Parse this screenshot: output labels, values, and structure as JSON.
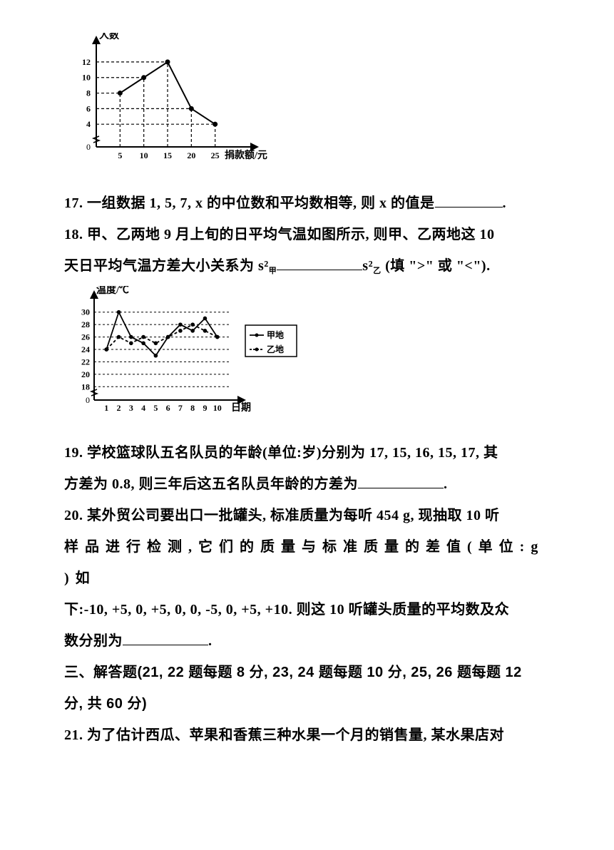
{
  "chart1": {
    "type": "line",
    "y_label": "人数",
    "x_label": "捐款额/元",
    "categories": [
      5,
      10,
      15,
      20,
      25
    ],
    "values": [
      8,
      10,
      12,
      6,
      4
    ],
    "yticks": [
      0,
      4,
      6,
      8,
      10,
      12
    ],
    "xlim": [
      0,
      30
    ],
    "ylim": [
      0,
      13
    ],
    "marker": "circle",
    "marker_fill": "#000000",
    "line_color": "#000000",
    "line_width": 2,
    "grid_style": "dashed",
    "grid_color": "#000000",
    "background": "#ffffff",
    "axis_color": "#000000",
    "label_fontsize": 12,
    "tick_fontsize": 12,
    "arrowheads": true
  },
  "q17": {
    "text_before": "17. 一组数据 1, 5, 7, x 的中位数和平均数相等, 则 x 的值是",
    "text_after": "."
  },
  "q18": {
    "text_line1_before": "18. 甲、乙两地 9 月上旬的日平均气温如图所示, 则甲、乙两地这 10",
    "text_line2_before": "天日平均气温方差大小关系为",
    "s_jia": "s²",
    "s_jia_sub": "甲",
    "s_yi": "s²",
    "s_yi_sub": "乙",
    "fill_hint": "(填 \">\" 或 \"<\")."
  },
  "chart2": {
    "type": "line",
    "y_label": "温度/℃",
    "x_label": "日期",
    "x": [
      1,
      2,
      3,
      4,
      5,
      6,
      7,
      8,
      9,
      10
    ],
    "series": [
      {
        "name": "甲地",
        "values": [
          24,
          30,
          26,
          25,
          23,
          26,
          28,
          27,
          29,
          26
        ],
        "style": "solid",
        "marker": "circle",
        "color": "#000000"
      },
      {
        "name": "乙地",
        "values": [
          24,
          26,
          25,
          26,
          25,
          26,
          27,
          28,
          27,
          26
        ],
        "style": "dashed",
        "marker": "circle",
        "color": "#000000"
      }
    ],
    "yticks": [
      0,
      18,
      20,
      22,
      24,
      26,
      28,
      30
    ],
    "xlim": [
      0,
      11
    ],
    "ylim": [
      17,
      31
    ],
    "grid_style": "dashed",
    "grid_color": "#000000",
    "background": "#ffffff",
    "axis_color": "#000000",
    "label_fontsize": 12,
    "tick_fontsize": 12,
    "legend_position": "right",
    "arrowheads": true
  },
  "q19": {
    "text_before": "19. 学校篮球队五名队员的年龄(单位:岁)分别为 17, 15, 16, 15, 17, 其",
    "text_line2_before": "方差为 0.8, 则三年后这五名队员年龄的方差为",
    "text_after": "."
  },
  "q20": {
    "line1": "20. 某外贸公司要出口一批罐头, 标准质量为每听 454 g, 现抽取 10 听",
    "line2": "样 品 进 行 检 测 , 它 们 的 质 量 与 标 准 质 量 的 差 值 ( 单 位 : g ) 如",
    "line3_before": "下:-10, +5, 0, +5, 0, 0, -5, 0, +5, +10. 则这 10 听罐头质量的平均数及众",
    "line4_before": "数分别为",
    "line4_after": "."
  },
  "section3": {
    "heading": "三、解答题(21, 22 题每题 8 分, 23, 24 题每题 10 分, 25, 26 题每题 12",
    "heading_line2": "分, 共 60 分)"
  },
  "q21": {
    "line1": "21. 为了估计西瓜、苹果和香蕉三种水果一个月的销售量, 某水果店对"
  }
}
